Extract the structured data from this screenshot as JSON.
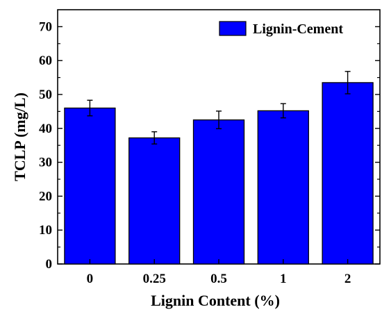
{
  "chart_data": {
    "type": "bar",
    "categories": [
      "0",
      "0.25",
      "0.5",
      "1",
      "2"
    ],
    "series": [
      {
        "name": "Lignin-Cement",
        "values": [
          46.0,
          37.2,
          42.5,
          45.2,
          53.5
        ],
        "errors": [
          2.3,
          1.8,
          2.6,
          2.1,
          3.3
        ],
        "color": "#0000ff"
      }
    ],
    "xlabel": "Lignin Content (%)",
    "ylabel": "TCLP (mg/L)",
    "ylim": [
      0,
      75
    ],
    "yticks": [
      0,
      10,
      20,
      30,
      40,
      50,
      60,
      70
    ],
    "grid": false,
    "legend_position": "top-right"
  },
  "colors": {
    "bar_fill": "#0000ff",
    "bar_edge": "#000000"
  }
}
